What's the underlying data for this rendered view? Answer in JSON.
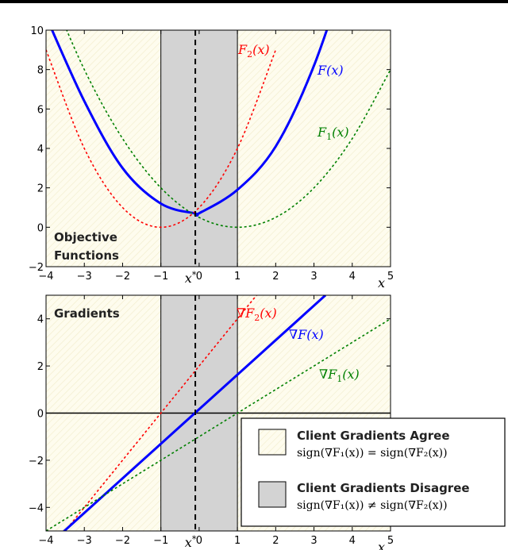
{
  "chart_data": [
    {
      "type": "line",
      "title": "",
      "panel_label_lines": [
        "Objective",
        "Functions"
      ],
      "xlabel": "x",
      "ylabel": "",
      "xlim": [
        -4,
        5
      ],
      "ylim": [
        -2,
        10
      ],
      "xticks": [
        -4,
        -3,
        -2,
        -1,
        0,
        1,
        2,
        3,
        4,
        5
      ],
      "yticks": [
        -2,
        0,
        2,
        4,
        6,
        8,
        10
      ],
      "x_star_label": "x*",
      "x_star": -0.1,
      "shaded_region": [
        -1,
        1
      ],
      "series": [
        {
          "name": "F(x)",
          "label_prefix": "F",
          "label_sub": "",
          "label_suffix": "(x)",
          "color": "#0000ff",
          "style": "solid",
          "x": [
            -4,
            -3,
            -2,
            -1,
            -0.1,
            0,
            1,
            2,
            3,
            4
          ],
          "y": [
            10.7,
            6.4,
            3.0,
            1.2,
            0.7,
            0.71,
            1.9,
            4.1,
            8.2,
            13.9
          ]
        },
        {
          "name": "F_2(x)",
          "label_prefix": "F",
          "label_sub": "2",
          "label_suffix": "(x)",
          "color": "#ff0000",
          "style": "dashed",
          "x": [
            -4,
            -3,
            -2,
            -1,
            0,
            1,
            2
          ],
          "y": [
            9.0,
            4.0,
            1.0,
            0.0,
            1.0,
            4.0,
            9.0
          ]
        },
        {
          "name": "F_1(x)",
          "label_prefix": "F",
          "label_sub": "1",
          "label_suffix": "(x)",
          "color": "#008000",
          "style": "dashed",
          "x": [
            -4,
            -3,
            -2,
            -1,
            0,
            1,
            2,
            3,
            4,
            5
          ],
          "y": [
            12.5,
            8.0,
            4.5,
            2.0,
            0.5,
            0.0,
            0.5,
            2.0,
            4.5,
            8.0
          ]
        }
      ]
    },
    {
      "type": "line",
      "title": "",
      "panel_label_lines": [
        "Gradients"
      ],
      "xlabel": "x",
      "ylabel": "",
      "xlim": [
        -4,
        5
      ],
      "ylim": [
        -5,
        5
      ],
      "xticks": [
        -4,
        -3,
        -2,
        -1,
        0,
        1,
        2,
        3,
        4,
        5
      ],
      "yticks": [
        -4,
        -2,
        0,
        2,
        4
      ],
      "x_star_label": "x*",
      "x_star": -0.1,
      "shaded_region": [
        -1,
        1
      ],
      "series": [
        {
          "name": "∇F_2(x)",
          "label_prefix": "∇F",
          "label_sub": "2",
          "label_suffix": "(x)",
          "color": "#ff0000",
          "style": "dashed",
          "x": [
            -4,
            1.5
          ],
          "y": [
            -6.0,
            5.0
          ]
        },
        {
          "name": "∇F(x)",
          "label_prefix": "∇F",
          "label_sub": "",
          "label_suffix": "(x)",
          "color": "#0000ff",
          "style": "solid",
          "x": [
            -4,
            3.3
          ],
          "y": [
            -5.7,
            5.0
          ]
        },
        {
          "name": "∇F_1(x)",
          "label_prefix": "∇F",
          "label_sub": "1",
          "label_suffix": "(x)",
          "color": "#008000",
          "style": "dashed",
          "x": [
            -4,
            5
          ],
          "y": [
            -5.0,
            4.0
          ]
        }
      ],
      "legend": {
        "items": [
          {
            "title": "Client Gradients Agree",
            "formula": "sign(∇F₁(x)) = sign(∇F₂(x))",
            "swatch": "#fdfbe9"
          },
          {
            "title": "Client Gradients Disagree",
            "formula": "sign(∇F₁(x)) ≠ sign(∇F₂(x))",
            "swatch": "#d3d3d3"
          }
        ]
      }
    }
  ]
}
